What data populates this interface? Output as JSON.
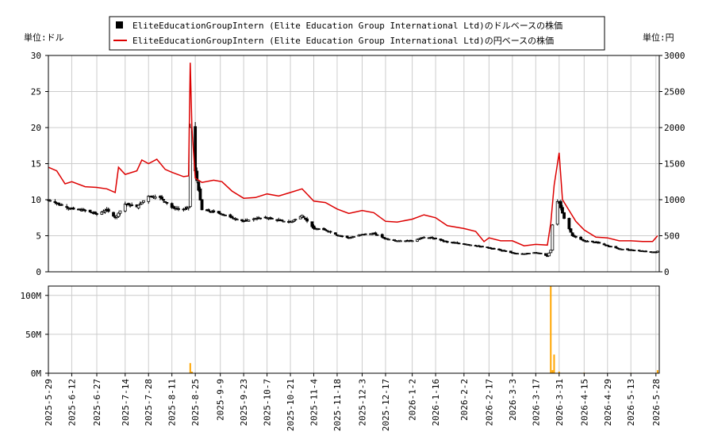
{
  "legend": {
    "usd_label": "EliteEducationGroupIntern (Elite Education Group International Ltd)のドルベースの株価",
    "jpy_label": "EliteEducationGroupIntern (Elite Education Group International Ltd)の円ベースの株価"
  },
  "unit_left": "単位:ドル",
  "unit_right": "単位:円",
  "colors": {
    "candle": "#000000",
    "jpy_line": "#dd0000",
    "volume": "#ffa500",
    "grid": "#cccccc"
  },
  "chart_data": [
    {
      "type": "line",
      "title": "",
      "x_axis": "date",
      "x_ticks": [
        "2025-5-29",
        "2025-6-12",
        "2025-6-27",
        "2025-7-14",
        "2025-7-28",
        "2025-8-11",
        "2025-8-25",
        "2025-9-9",
        "2025-9-23",
        "2025-10-7",
        "2025-10-21",
        "2025-11-4",
        "2025-11-18",
        "2025-12-3",
        "2025-12-17",
        "2026-1-2",
        "2026-1-16",
        "2026-2-2",
        "2026-2-17",
        "2026-3-3",
        "2026-3-17",
        "2026-3-31",
        "2026-4-15",
        "2026-4-29",
        "2026-5-13",
        "2026-5-28"
      ],
      "x_range": [
        "2025-5-29",
        "2026-5-30"
      ],
      "y_left": {
        "label": "単位:ドル",
        "range": [
          0,
          30
        ],
        "ticks": [
          0,
          5,
          10,
          15,
          20,
          25,
          30
        ]
      },
      "y_right": {
        "label": "単位:円",
        "range": [
          0,
          3000
        ],
        "ticks": [
          0,
          500,
          1000,
          1500,
          2000,
          2500,
          3000
        ]
      },
      "grid": true,
      "legend_position": "top-center",
      "series": [
        {
          "name": "EliteEducationGroupIntern (Elite Education Group International Ltd)のドルベースの株価",
          "kind": "candlestick-approx",
          "axis": "left",
          "x": [
            "2025-5-29",
            "2025-6-5",
            "2025-6-12",
            "2025-6-20",
            "2025-6-27",
            "2025-7-3",
            "2025-7-8",
            "2025-7-14",
            "2025-7-21",
            "2025-7-28",
            "2025-8-4",
            "2025-8-11",
            "2025-8-18",
            "2025-8-21",
            "2025-8-22",
            "2025-8-25",
            "2025-8-29",
            "2025-9-9",
            "2025-9-16",
            "2025-9-23",
            "2025-9-30",
            "2025-10-7",
            "2025-10-14",
            "2025-10-21",
            "2025-10-28",
            "2025-11-4",
            "2025-11-11",
            "2025-11-18",
            "2025-11-25",
            "2025-12-3",
            "2025-12-10",
            "2025-12-17",
            "2025-12-24",
            "2026-1-2",
            "2026-1-9",
            "2026-1-16",
            "2026-1-23",
            "2026-2-2",
            "2026-2-9",
            "2026-2-17",
            "2026-2-24",
            "2026-3-3",
            "2026-3-10",
            "2026-3-17",
            "2026-3-24",
            "2026-3-26",
            "2026-3-28",
            "2026-3-31",
            "2026-4-3",
            "2026-4-8",
            "2026-4-15",
            "2026-4-22",
            "2026-4-29",
            "2026-5-6",
            "2026-5-13",
            "2026-5-20",
            "2026-5-28",
            "2026-5-30"
          ],
          "values": [
            10.0,
            9.3,
            8.7,
            8.5,
            8.0,
            8.6,
            7.5,
            9.4,
            9.0,
            10.5,
            10.3,
            8.9,
            8.6,
            9.0,
            20.0,
            14.0,
            8.6,
            8.1,
            7.5,
            7.0,
            7.4,
            7.5,
            7.1,
            6.9,
            7.8,
            6.0,
            5.8,
            5.1,
            4.7,
            5.2,
            5.3,
            4.6,
            4.3,
            4.3,
            4.8,
            4.6,
            4.1,
            3.9,
            3.6,
            3.3,
            3.0,
            2.6,
            2.5,
            2.7,
            2.2,
            3.0,
            10.0,
            9.6,
            7.4,
            5.0,
            4.3,
            4.1,
            3.6,
            3.2,
            3.0,
            2.9,
            2.7,
            3.0
          ]
        },
        {
          "name": "EliteEducationGroupIntern (Elite Education Group International Ltd)の円ベースの株価",
          "kind": "line",
          "axis": "right",
          "x": [
            "2025-5-29",
            "2025-6-3",
            "2025-6-8",
            "2025-6-12",
            "2025-6-20",
            "2025-6-27",
            "2025-7-3",
            "2025-7-8",
            "2025-7-10",
            "2025-7-14",
            "2025-7-21",
            "2025-7-24",
            "2025-7-28",
            "2025-8-2",
            "2025-8-7",
            "2025-8-11",
            "2025-8-18",
            "2025-8-21",
            "2025-8-22",
            "2025-8-23",
            "2025-8-25",
            "2025-8-29",
            "2025-9-5",
            "2025-9-10",
            "2025-9-16",
            "2025-9-23",
            "2025-9-30",
            "2025-10-7",
            "2025-10-14",
            "2025-10-21",
            "2025-10-28",
            "2025-11-4",
            "2025-11-11",
            "2025-11-18",
            "2025-11-25",
            "2025-12-3",
            "2025-12-10",
            "2025-12-17",
            "2025-12-24",
            "2026-1-2",
            "2026-1-9",
            "2026-1-16",
            "2026-1-23",
            "2026-2-2",
            "2026-2-9",
            "2026-2-14",
            "2026-2-17",
            "2026-2-24",
            "2026-3-3",
            "2026-3-10",
            "2026-3-17",
            "2026-3-24",
            "2026-3-26",
            "2026-3-28",
            "2026-3-31",
            "2026-4-2",
            "2026-4-6",
            "2026-4-10",
            "2026-4-15",
            "2026-4-22",
            "2026-4-29",
            "2026-5-6",
            "2026-5-13",
            "2026-5-20",
            "2026-5-26",
            "2026-5-29"
          ],
          "values": [
            1450,
            1400,
            1220,
            1250,
            1180,
            1170,
            1150,
            1100,
            1450,
            1350,
            1400,
            1550,
            1500,
            1560,
            1420,
            1380,
            1320,
            1330,
            2900,
            2000,
            1300,
            1240,
            1270,
            1250,
            1120,
            1020,
            1030,
            1080,
            1050,
            1100,
            1150,
            980,
            960,
            870,
            810,
            850,
            820,
            700,
            690,
            730,
            790,
            750,
            640,
            600,
            560,
            420,
            470,
            430,
            430,
            360,
            380,
            370,
            680,
            1200,
            1650,
            1000,
            850,
            700,
            580,
            480,
            470,
            430,
            430,
            420,
            420,
            500
          ]
        }
      ]
    },
    {
      "type": "bar",
      "title": "",
      "x_axis": "date",
      "x_ticks": [
        "2025-5-29",
        "2025-6-12",
        "2025-6-27",
        "2025-7-14",
        "2025-7-28",
        "2025-8-11",
        "2025-8-25",
        "2025-9-9",
        "2025-9-23",
        "2025-10-7",
        "2025-10-21",
        "2025-11-4",
        "2025-11-18",
        "2025-12-3",
        "2025-12-17",
        "2026-1-2",
        "2026-1-16",
        "2026-2-2",
        "2026-2-17",
        "2026-3-3",
        "2026-3-17",
        "2026-3-31",
        "2026-4-15",
        "2026-4-29",
        "2026-5-13",
        "2026-5-28"
      ],
      "x_range": [
        "2025-5-29",
        "2026-5-30"
      ],
      "y_left": {
        "range": [
          0,
          112000000
        ],
        "ticks": [
          0,
          50000000,
          100000000
        ],
        "tick_labels": [
          "0M",
          "50M",
          "100M"
        ]
      },
      "grid": true,
      "series": [
        {
          "name": "",
          "x": [
            "2025-6-20",
            "2025-8-22",
            "2025-8-23",
            "2026-2-17",
            "2026-3-3",
            "2026-3-26",
            "2026-3-27",
            "2026-3-28",
            "2026-3-31",
            "2026-4-15",
            "2026-5-13",
            "2026-5-29"
          ],
          "values": [
            500000,
            13000000,
            2000000,
            500000,
            500000,
            112000000,
            4000000,
            24000000,
            2000000,
            800000,
            600000,
            4000000
          ]
        }
      ]
    }
  ]
}
